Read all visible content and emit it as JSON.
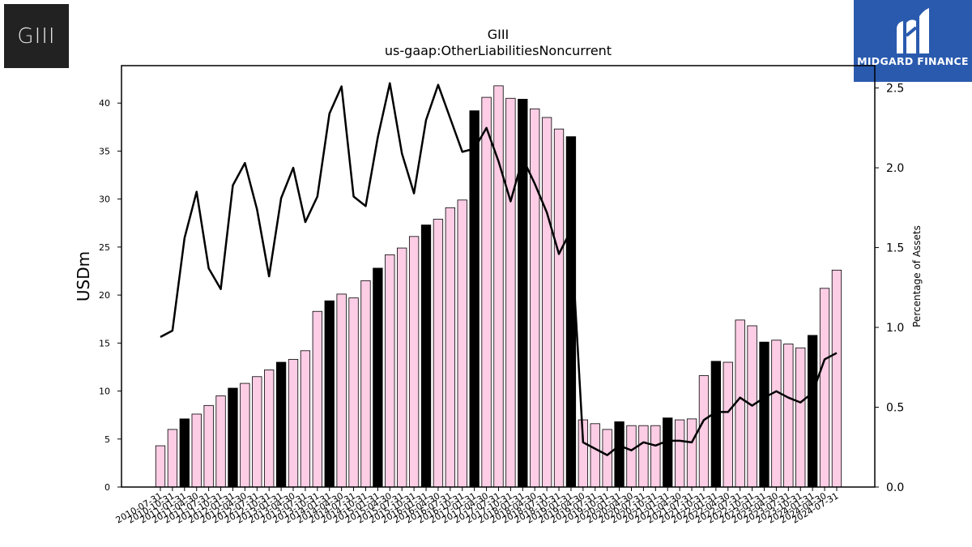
{
  "logos": {
    "left_text": "GIII",
    "right_text": "MIDGARD FINANCE"
  },
  "chart_data": {
    "type": "bar",
    "title": "GIII",
    "subtitle": "us-gaap:OtherLiabilitiesNoncurrent",
    "ylabel": "USDm",
    "y2label": "Percentage of Assets",
    "ylim": [
      0,
      43.9
    ],
    "y2lim": [
      0,
      2.64
    ],
    "yticks": [
      0,
      5,
      10,
      15,
      20,
      25,
      30,
      35,
      40
    ],
    "y2ticks": [
      "0.0",
      "0.5",
      "1.0",
      "1.5",
      "2.0",
      "2.5"
    ],
    "colors": {
      "bar": "#fccde5",
      "bar_highlight": "#000000",
      "line": "#000000"
    },
    "categories": [
      "2010-07-31",
      "2010-10-31",
      "2011-01-31",
      "2011-04-30",
      "2011-07-31",
      "2011-10-31",
      "2012-01-31",
      "2012-04-30",
      "2012-07-31",
      "2012-10-31",
      "2013-01-31",
      "2013-04-30",
      "2013-07-31",
      "2013-10-31",
      "2014-01-31",
      "2014-04-30",
      "2014-07-31",
      "2014-10-31",
      "2015-01-31",
      "2015-04-30",
      "2015-07-31",
      "2015-10-31",
      "2016-01-31",
      "2016-04-30",
      "2016-07-31",
      "2016-10-31",
      "2017-01-31",
      "2017-04-30",
      "2017-07-31",
      "2017-10-31",
      "2018-01-31",
      "2018-04-30",
      "2018-07-31",
      "2018-10-31",
      "2019-01-31",
      "2019-04-30",
      "2019-07-31",
      "2019-10-31",
      "2020-01-31",
      "2020-04-30",
      "2020-07-31",
      "2020-10-31",
      "2021-01-31",
      "2021-04-30",
      "2021-07-31",
      "2021-10-31",
      "2022-01-31",
      "2022-04-30",
      "2022-07-31",
      "2022-10-31",
      "2023-01-31",
      "2023-04-30",
      "2023-07-31",
      "2023-10-31",
      "2024-01-31",
      "2024-04-30",
      "2024-07-31"
    ],
    "xtick_labels": [
      "2010-07-31",
      "2010-10-31",
      "2011-01-31",
      "2011-04-30",
      "2011-07-31",
      "2011-10-31",
      "2012-01-31",
      "2012-04-30",
      "2012-07-31",
      "2012-10-31",
      "2013-01-31",
      "2013-04-30",
      "2013-07-31",
      "2013-10-31",
      "2014-01-31",
      "2014-04-30",
      "2014-07-31",
      "2014-10-31",
      "2015-01-31",
      "2015-04-30",
      "2015-07-31",
      "2015-10-31",
      "2016-01-31",
      "2016-04-30",
      "2016-07-31",
      "2016-10-31",
      "2017-01-31",
      "2017-04-30",
      "2017-07-31",
      "2017-10-31",
      "2018-01-31",
      "2018-04-30",
      "2018-07-31",
      "2018-10-31",
      "2019-01-31",
      "2019-04-30",
      "2019-07-31",
      "2019-10-31",
      "2020-01-31",
      "2020-04-30",
      "2020-07-31",
      "2020-10-31",
      "2021-01-31",
      "2021-04-30",
      "2021-07-31",
      "2021-10-31",
      "2022-01-31",
      "2022-04-30",
      "2022-07-31",
      "2022-10-31",
      "2023-01-31",
      "2023-04-30",
      "2023-07-31",
      "2023-10-31",
      "2024-01-31",
      "2024-04-30",
      "2024-07-31"
    ],
    "values": [
      4.3,
      6.0,
      7.1,
      7.6,
      8.5,
      9.5,
      10.3,
      10.8,
      11.5,
      12.2,
      13.0,
      13.3,
      14.2,
      18.3,
      19.4,
      20.1,
      19.7,
      21.5,
      22.8,
      24.2,
      24.9,
      26.1,
      27.3,
      27.9,
      29.1,
      29.9,
      39.2,
      40.6,
      41.8,
      40.5,
      40.4,
      39.4,
      38.5,
      37.3,
      36.5,
      7.0,
      6.6,
      6.0,
      6.8,
      6.4,
      6.4,
      6.4,
      7.2,
      7.0,
      7.1,
      11.6,
      13.1,
      13.0,
      17.4,
      16.8,
      15.1,
      15.3,
      14.9,
      14.5,
      15.8,
      20.7,
      22.6
    ],
    "highlight": [
      false,
      false,
      true,
      false,
      false,
      false,
      true,
      false,
      false,
      false,
      true,
      false,
      false,
      false,
      true,
      false,
      false,
      false,
      true,
      false,
      false,
      false,
      true,
      false,
      false,
      false,
      true,
      false,
      false,
      false,
      true,
      false,
      false,
      false,
      true,
      false,
      false,
      false,
      true,
      false,
      false,
      false,
      true,
      false,
      false,
      false,
      true,
      false,
      false,
      false,
      true,
      false,
      false,
      false,
      true,
      false,
      false
    ],
    "pct_assets": [
      0.94,
      0.98,
      1.56,
      1.85,
      1.37,
      1.24,
      1.89,
      2.03,
      1.74,
      1.32,
      1.81,
      2.0,
      1.66,
      1.82,
      2.34,
      2.51,
      1.82,
      1.76,
      2.19,
      2.53,
      2.09,
      1.84,
      2.3,
      2.52,
      2.31,
      2.1,
      2.12,
      2.25,
      2.04,
      1.79,
      2.06,
      1.9,
      1.72,
      1.46,
      1.61,
      0.28,
      0.24,
      0.2,
      0.26,
      0.23,
      0.28,
      0.26,
      0.29,
      0.29,
      0.28,
      0.42,
      0.47,
      0.47,
      0.56,
      0.51,
      0.56,
      0.6,
      0.56,
      0.53,
      0.59,
      0.8,
      0.84
    ]
  }
}
